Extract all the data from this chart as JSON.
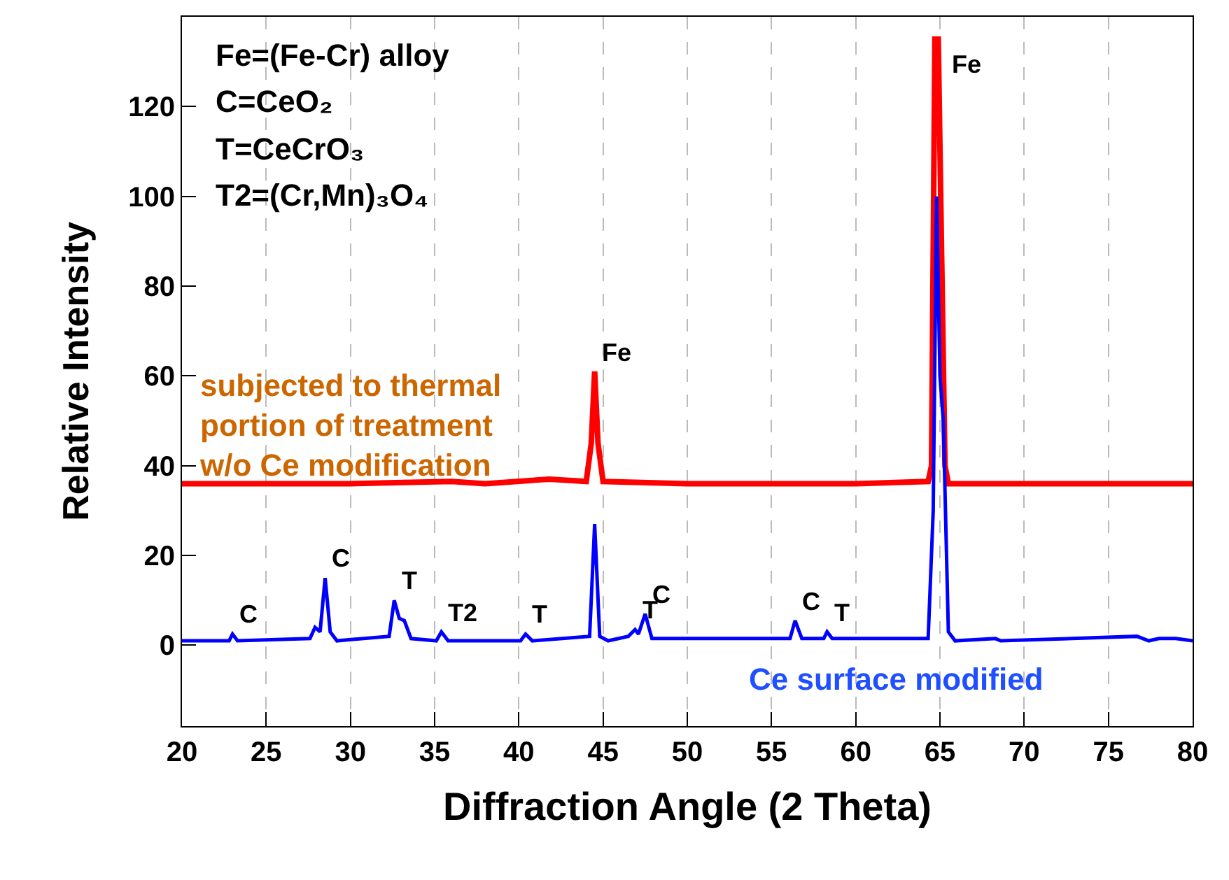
{
  "chart_data": {
    "type": "line",
    "xlabel": "Diffraction Angle (2 Theta)",
    "ylabel": "Relative Intensity",
    "xlim": [
      20,
      80
    ],
    "xticks": [
      20,
      25,
      30,
      35,
      40,
      45,
      50,
      55,
      60,
      65,
      70,
      75,
      80
    ],
    "ylim": [
      -18,
      140
    ],
    "yticks": [
      0,
      20,
      40,
      60,
      80,
      100,
      120
    ],
    "grid": "x",
    "legend": false,
    "marker": "none",
    "line_style": "solid",
    "series": [
      {
        "name": "subjected to thermal portion of treatment w/o Ce modification",
        "color": "#ff0000",
        "x": [
          20,
          30,
          36,
          38,
          41.8,
          44,
          44.3,
          44.5,
          44.7,
          45,
          50,
          60,
          64.3,
          64.5,
          64.7,
          64.9,
          65.1,
          65.3,
          65.5,
          70,
          75,
          80
        ],
        "values": [
          36,
          36,
          36.5,
          36,
          37,
          36.5,
          45,
          61,
          45,
          36.5,
          36,
          36,
          36.5,
          40,
          135,
          135,
          87,
          40,
          36,
          36,
          36,
          36
        ]
      },
      {
        "name": "Ce surface modified",
        "color": "#0000ff",
        "x": [
          20,
          22.8,
          23,
          23.3,
          27.6,
          27.9,
          28.2,
          28.5,
          28.8,
          29.2,
          32.3,
          32.6,
          32.9,
          33.2,
          33.6,
          35.1,
          35.4,
          35.8,
          40.1,
          40.4,
          40.8,
          44.2,
          44.5,
          44.8,
          45.3,
          46.5,
          46.9,
          47.1,
          47.5,
          47.9,
          56.1,
          56.4,
          56.8,
          58.1,
          58.3,
          58.6,
          64.3,
          64.6,
          64.8,
          65.0,
          65.2,
          65.5,
          65.9,
          68.3,
          68.6,
          76.7,
          77.4,
          78,
          79,
          80
        ],
        "values": [
          1,
          1,
          2.5,
          1,
          1.5,
          4,
          3,
          15,
          3,
          1,
          2,
          10,
          6,
          5.5,
          1.5,
          1,
          3,
          1,
          1,
          2.5,
          1,
          2,
          27,
          2,
          1,
          2,
          3.5,
          2.5,
          7,
          1.5,
          1.5,
          5.5,
          1.5,
          1.5,
          3,
          1.5,
          1.5,
          30,
          100,
          60,
          50,
          3,
          1,
          1.5,
          1,
          2,
          1,
          1.5,
          1.5,
          1
        ]
      }
    ],
    "annotations": [
      "Fe=(Fe-Cr) alloy",
      "C=CeO₂",
      "T=CeCrO₃",
      "T2=(Cr,Mn)₃O₄",
      {
        "text": "Fe",
        "x": 44.5,
        "y": 61
      },
      {
        "text": "Fe",
        "x": 64.9,
        "y": 135
      },
      {
        "text": "C",
        "x": 23,
        "y": 2.5
      },
      {
        "text": "C",
        "x": 28.5,
        "y": 15
      },
      {
        "text": "T",
        "x": 32.6,
        "y": 10
      },
      {
        "text": "T2",
        "x": 35.4,
        "y": 3
      },
      {
        "text": "T",
        "x": 40.4,
        "y": 2.5
      },
      {
        "text": "T",
        "x": 46.9,
        "y": 3.5
      },
      {
        "text": "C",
        "x": 47.5,
        "y": 7
      },
      {
        "text": "C",
        "x": 56.4,
        "y": 5.5
      },
      {
        "text": "T",
        "x": 58.3,
        "y": 3
      }
    ]
  }
}
